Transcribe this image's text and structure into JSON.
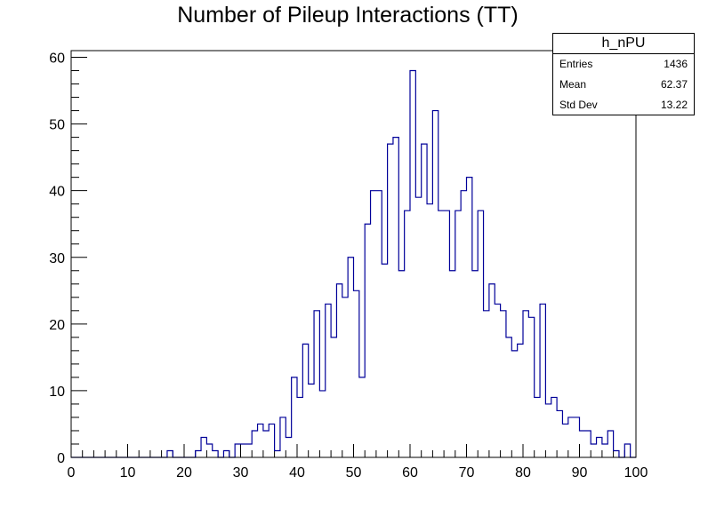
{
  "chart_data": {
    "type": "bar",
    "title": "Number of Pileup Interactions (TT)",
    "xlabel": "",
    "ylabel": "",
    "xlim": [
      0,
      100
    ],
    "ylim": [
      0,
      61
    ],
    "bin_width": 1,
    "x_ticks": [
      "0",
      "10",
      "20",
      "30",
      "40",
      "50",
      "60",
      "70",
      "80",
      "90",
      "100"
    ],
    "y_ticks": [
      "0",
      "10",
      "20",
      "30",
      "40",
      "50",
      "60"
    ],
    "values": [
      0,
      0,
      0,
      0,
      0,
      0,
      0,
      0,
      0,
      0,
      0,
      0,
      0,
      0,
      0,
      0,
      0,
      1,
      0,
      0,
      0,
      0,
      1,
      3,
      2,
      1,
      0,
      1,
      0,
      2,
      2,
      2,
      4,
      5,
      4,
      5,
      1,
      6,
      3,
      12,
      9,
      17,
      11,
      22,
      10,
      23,
      18,
      26,
      24,
      30,
      25,
      12,
      35,
      40,
      40,
      29,
      47,
      48,
      28,
      37,
      58,
      39,
      47,
      38,
      52,
      37,
      37,
      28,
      37,
      40,
      42,
      28,
      37,
      22,
      26,
      23,
      22,
      18,
      16,
      17,
      22,
      21,
      9,
      23,
      8,
      9,
      7,
      5,
      6,
      6,
      4,
      4,
      2,
      3,
      2,
      4,
      1,
      0,
      2,
      0
    ],
    "series": [
      {
        "name": "h_nPU",
        "color": "#000099"
      }
    ],
    "grid": false
  },
  "stats": {
    "name": "h_nPU",
    "rows": [
      {
        "label": "Entries",
        "value": "1436"
      },
      {
        "label": "Mean",
        "value": "62.37"
      },
      {
        "label": "Std Dev",
        "value": "13.22"
      }
    ]
  }
}
